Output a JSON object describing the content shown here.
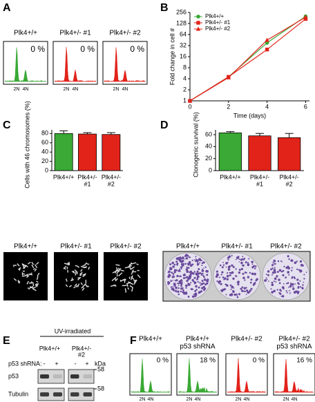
{
  "panel_labels": [
    "A",
    "B",
    "C",
    "D",
    "E",
    "F"
  ],
  "panel_a": {
    "histograms": [
      {
        "label": "Plk4+/+",
        "percent": "0 %"
      },
      {
        "label": "Plk4+/- #1",
        "percent": "0 %"
      },
      {
        "label": "Plk4+/- #2",
        "percent": "0 %"
      }
    ],
    "x_labels": [
      "2N",
      "4N"
    ]
  },
  "chart_data": [
    {
      "type": "line",
      "x_label": "Time (days)",
      "y_label": "Fold change in cell #",
      "x": [
        0,
        2,
        4,
        6
      ],
      "xlim": [
        0,
        6.2
      ],
      "xticks": [
        0,
        2,
        4,
        6
      ],
      "ylim": [
        1,
        256
      ],
      "yticks": [
        1,
        2,
        4,
        8,
        16,
        32,
        64,
        128,
        256
      ],
      "log_scale_base": 2,
      "legend": "top-left",
      "series": [
        {
          "name": "Plk4+/+",
          "color": "#3aa935",
          "marker": "circle",
          "values": [
            1,
            4.5,
            38,
            200
          ]
        },
        {
          "name": "Plk4+/- #1",
          "color": "#e2231a",
          "marker": "square",
          "values": [
            1,
            4.5,
            25,
            170
          ]
        },
        {
          "name": "Plk4+/- #2",
          "color": "#e2231a",
          "marker": "triangle",
          "values": [
            1,
            4.3,
            45,
            190
          ]
        }
      ]
    },
    {
      "type": "bar",
      "y_label": "Cells with 46 chromosomes (%)",
      "categories": [
        [
          "Plk4+/+"
        ],
        [
          "Plk4+/-",
          "#1"
        ],
        [
          "Plk4+/-",
          "#2"
        ]
      ],
      "values": [
        80,
        79,
        78
      ],
      "errors": [
        6,
        3,
        4
      ],
      "colors": [
        "#3aa935",
        "#e2231a",
        "#e2231a"
      ],
      "ylim": [
        0,
        88
      ],
      "yticks": [
        0,
        20,
        40,
        60,
        80
      ]
    },
    {
      "type": "bar",
      "y_label": "Clonogenic survival (%)",
      "categories": [
        [
          "Plk4+/+"
        ],
        [
          "Plk4+/-",
          "#1"
        ],
        [
          "Plk4+/-",
          "#2"
        ]
      ],
      "values": [
        63,
        58,
        55
      ],
      "errors": [
        2,
        4,
        7
      ],
      "colors": [
        "#3aa935",
        "#e2231a",
        "#e2231a"
      ],
      "ylim": [
        0,
        68
      ],
      "yticks": [
        0,
        20,
        40,
        60
      ]
    }
  ],
  "micrographs": {
    "labels": [
      "Plk4+/+",
      "Plk4+/- #1",
      "Plk4+/- #2"
    ]
  },
  "colonies": {
    "labels": [
      "Plk4+/+",
      "Plk4+/- #1",
      "Plk4+/- #2"
    ]
  },
  "panel_e": {
    "title": "UV-irradiated",
    "genotypes": [
      [
        "Plk4+/+"
      ],
      [
        "Plk4+/-",
        "#2"
      ]
    ],
    "shrna_label": "p53 shRNA:",
    "lanes": [
      "-",
      "+",
      "-",
      "+"
    ],
    "kda": "kDa",
    "rows": [
      {
        "label": "p53",
        "kda": "58"
      },
      {
        "label": "Tubulin",
        "kda": "58"
      }
    ]
  },
  "panel_f": {
    "histograms": [
      {
        "label": [
          "Plk4+/+"
        ],
        "percent": "0 %"
      },
      {
        "label": [
          "Plk4+/+",
          "p53 shRNA"
        ],
        "percent": "18 %"
      },
      {
        "label": [
          "Plk4+/- #2"
        ],
        "percent": "0 %"
      },
      {
        "label": [
          "Plk4+/- #2",
          "p53 shRNA"
        ],
        "percent": "16 %"
      }
    ],
    "x_labels": [
      "2N",
      "4N"
    ]
  }
}
